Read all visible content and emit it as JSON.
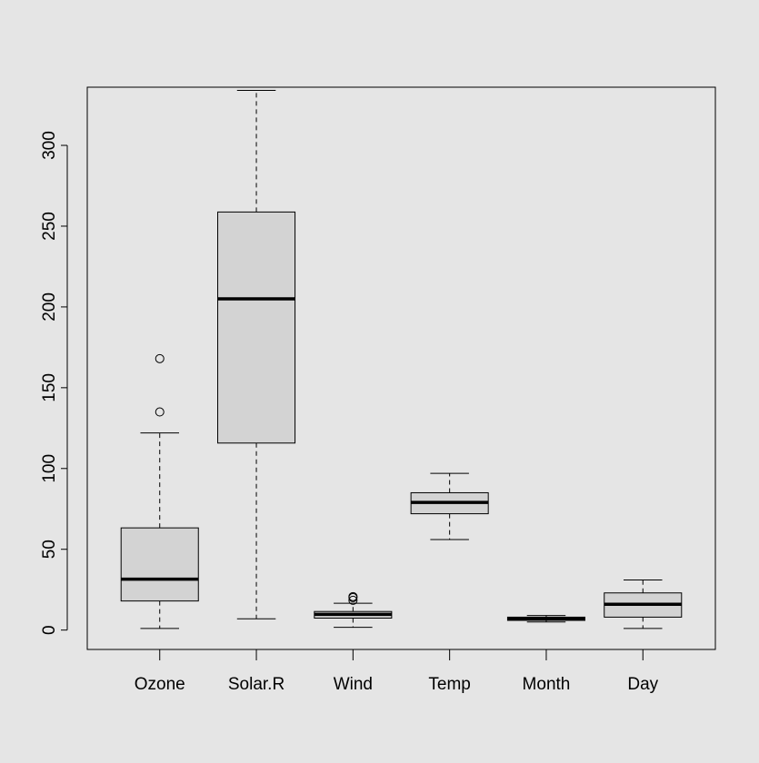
{
  "chart_data": {
    "type": "boxplot",
    "title": "",
    "xlabel": "",
    "ylabel": "",
    "ylim": [
      -12,
      336
    ],
    "yticks": [
      0,
      50,
      100,
      150,
      200,
      250,
      300
    ],
    "grid": false,
    "colors": {
      "box_fill": "#d3d3d3",
      "stroke": "#000000",
      "background": "#e5e5e5"
    },
    "categories": [
      "Ozone",
      "Solar.R",
      "Wind",
      "Temp",
      "Month",
      "Day"
    ],
    "series": [
      {
        "category": "Ozone",
        "whisker_low": 1,
        "q1": 18,
        "median": 31.5,
        "q3": 63.25,
        "whisker_high": 122,
        "outliers": [
          135,
          168
        ]
      },
      {
        "category": "Solar.R",
        "whisker_low": 7,
        "q1": 115.75,
        "median": 205,
        "q3": 258.75,
        "whisker_high": 334,
        "outliers": []
      },
      {
        "category": "Wind",
        "whisker_low": 1.7,
        "q1": 7.4,
        "median": 9.7,
        "q3": 11.5,
        "whisker_high": 16.6,
        "outliers": [
          18.4,
          20.1,
          20.7
        ]
      },
      {
        "category": "Temp",
        "whisker_low": 56,
        "q1": 72,
        "median": 79,
        "q3": 85,
        "whisker_high": 97,
        "outliers": []
      },
      {
        "category": "Month",
        "whisker_low": 5,
        "q1": 6,
        "median": 7,
        "q3": 8,
        "whisker_high": 9,
        "outliers": []
      },
      {
        "category": "Day",
        "whisker_low": 1,
        "q1": 8,
        "median": 16,
        "q3": 23,
        "whisker_high": 31,
        "outliers": []
      }
    ]
  }
}
